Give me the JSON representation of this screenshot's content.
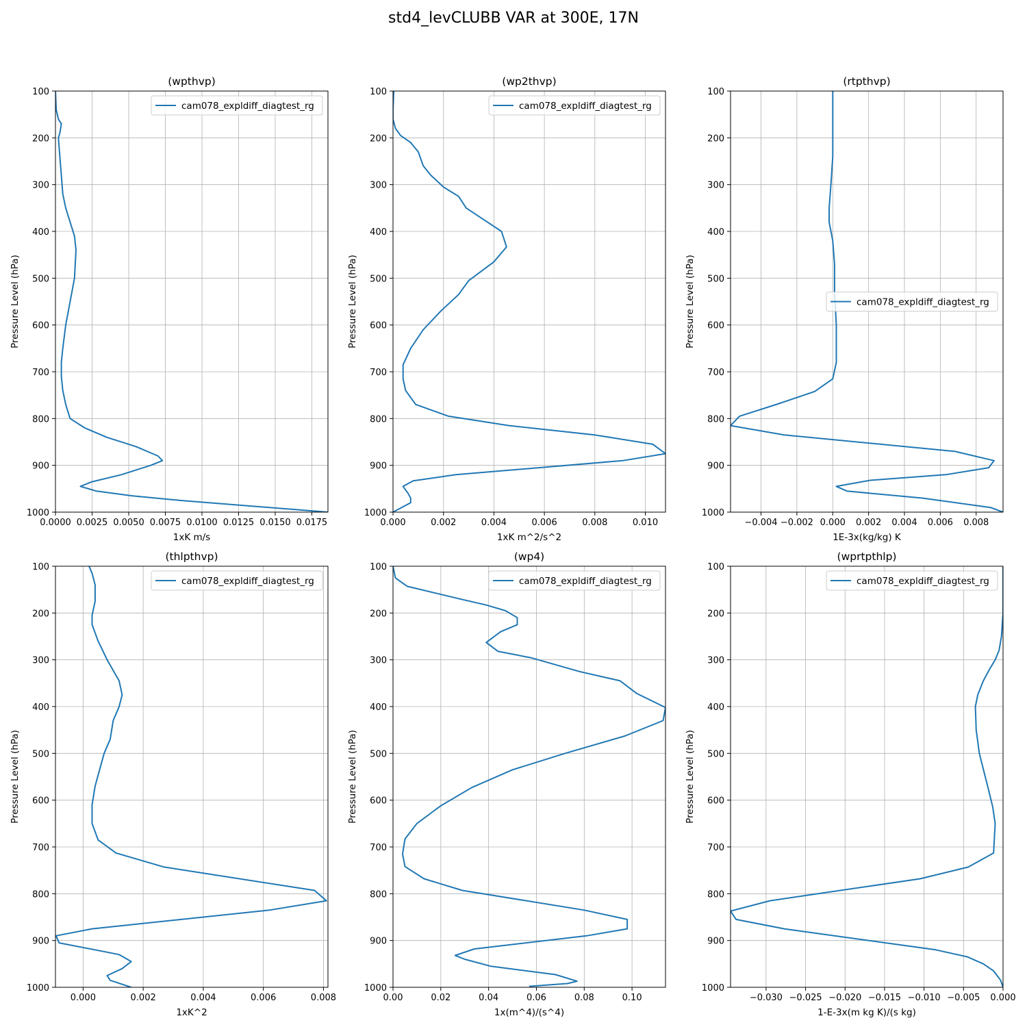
{
  "suptitle": "std4_levCLUBB VAR at 300E, 17N",
  "legend_label": "cam078_expldiff_diagtest_rg",
  "series_color": "#1f77b4",
  "chart_data": [
    {
      "type": "line",
      "title": "(wpthvp)",
      "xlabel": "1xK m/s",
      "ylabel": "Pressure Level (hPa)",
      "xlim": [
        0,
        0.0186
      ],
      "ylim": [
        1000,
        100
      ],
      "xticks": [
        0,
        0.0025,
        0.005,
        0.0075,
        0.01,
        0.0125,
        0.015,
        0.0175
      ],
      "xtick_labels": [
        "0.0000",
        "0.0025",
        "0.0050",
        "0.0075",
        "0.0100",
        "0.0125",
        "0.0150",
        "0.0175"
      ],
      "yticks": [
        100,
        200,
        300,
        400,
        500,
        600,
        700,
        800,
        900,
        1000
      ],
      "grid": true,
      "legend_loc": "upper right",
      "series": [
        {
          "name": "cam078_expldiff_diagtest_rg",
          "x": [
            0.0,
            5e-05,
            0.0002,
            0.0004,
            0.0003,
            0.0002,
            0.0003,
            0.0004,
            0.0005,
            0.0007,
            0.001,
            0.0013,
            0.0014,
            0.0013,
            0.001,
            0.0007,
            0.0005,
            0.0004,
            0.0004,
            0.0005,
            0.0007,
            0.001,
            0.002,
            0.0035,
            0.0055,
            0.007,
            0.0073,
            0.0065,
            0.0045,
            0.0025,
            0.0017,
            0.0028,
            0.0052,
            0.0085,
            0.0186
          ],
          "y": [
            100,
            140,
            160,
            170,
            190,
            200,
            240,
            280,
            320,
            350,
            380,
            410,
            440,
            500,
            550,
            600,
            650,
            680,
            710,
            740,
            770,
            800,
            820,
            840,
            860,
            880,
            890,
            900,
            920,
            935,
            945,
            955,
            965,
            975,
            1000
          ]
        }
      ]
    },
    {
      "type": "line",
      "title": "(wp2thvp)",
      "xlabel": "1xK m^2/s^2",
      "ylabel": "Pressure Level (hPa)",
      "xlim": [
        0,
        0.0108
      ],
      "ylim": [
        1000,
        100
      ],
      "xticks": [
        0,
        0.002,
        0.004,
        0.006,
        0.008,
        0.01
      ],
      "xtick_labels": [
        "0.000",
        "0.002",
        "0.004",
        "0.006",
        "0.008",
        "0.010"
      ],
      "yticks": [
        100,
        200,
        300,
        400,
        500,
        600,
        700,
        800,
        900,
        1000
      ],
      "grid": true,
      "legend_loc": "upper right",
      "series": [
        {
          "name": "cam078_expldiff_diagtest_rg",
          "x": [
            3e-05,
            0.0,
            0.0,
            0.0001,
            0.0003,
            0.0007,
            0.001,
            0.0012,
            0.0015,
            0.002,
            0.0026,
            0.0029,
            0.0036,
            0.0043,
            0.0045,
            0.004,
            0.003,
            0.0026,
            0.0019,
            0.0012,
            0.0007,
            0.0004,
            0.0004,
            0.0005,
            0.0009,
            0.0022,
            0.0046,
            0.008,
            0.0103,
            0.0108,
            0.0091,
            0.0025,
            0.0008,
            0.0004,
            0.0006,
            0.0007,
            0.0007,
            0.0
          ],
          "y": [
            100,
            140,
            160,
            180,
            195,
            210,
            230,
            260,
            280,
            305,
            325,
            350,
            375,
            400,
            433,
            465,
            505,
            535,
            570,
            610,
            650,
            685,
            715,
            740,
            770,
            795,
            815,
            835,
            855,
            875,
            890,
            920,
            933,
            945,
            960,
            970,
            980,
            1000
          ]
        }
      ]
    },
    {
      "type": "line",
      "title": "(rtpthvp)",
      "xlabel": "1E-3x(kg/kg) K",
      "ylabel": "Pressure Level (hPa)",
      "xlim": [
        -0.0057,
        0.0095
      ],
      "ylim": [
        1000,
        100
      ],
      "xticks": [
        -0.004,
        -0.002,
        0,
        0.002,
        0.004,
        0.006,
        0.008
      ],
      "xtick_labels": [
        "−0.004",
        "−0.002",
        "0.000",
        "0.002",
        "0.004",
        "0.006",
        "0.008"
      ],
      "yticks": [
        100,
        200,
        300,
        400,
        500,
        600,
        700,
        800,
        900,
        1000
      ],
      "grid": true,
      "legend_loc": "center right",
      "series": [
        {
          "name": "cam078_expldiff_diagtest_rg",
          "x": [
            0.0,
            0.0,
            0.0,
            -0.0001,
            -0.0002,
            -0.0002,
            0.0,
            0.0001,
            0.0001,
            0.0002,
            0.0002,
            0.0002,
            0.0,
            -0.001,
            -0.003,
            -0.0052,
            -0.0057,
            -0.0027,
            0.0068,
            0.009,
            0.0087,
            0.0063,
            0.0021,
            0.0002,
            0.0008,
            0.005,
            0.0088,
            0.0095
          ],
          "y": [
            100,
            200,
            240,
            300,
            350,
            380,
            420,
            470,
            530,
            600,
            650,
            680,
            715,
            742,
            768,
            795,
            815,
            835,
            870,
            890,
            905,
            920,
            932,
            945,
            955,
            970,
            990,
            1000
          ]
        }
      ]
    },
    {
      "type": "line",
      "title": "(thlpthvp)",
      "xlabel": "1xK^2",
      "ylabel": "Pressure Level (hPa)",
      "xlim": [
        -0.00092,
        0.00815
      ],
      "ylim": [
        1000,
        100
      ],
      "xticks": [
        0,
        0.002,
        0.004,
        0.006,
        0.008
      ],
      "xtick_labels": [
        "0.000",
        "0.002",
        "0.004",
        "0.006",
        "0.008"
      ],
      "yticks": [
        100,
        200,
        300,
        400,
        500,
        600,
        700,
        800,
        900,
        1000
      ],
      "grid": true,
      "legend_loc": "upper right",
      "series": [
        {
          "name": "cam078_expldiff_diagtest_rg",
          "x": [
            0.0002,
            0.0003,
            0.0004,
            0.0004,
            0.0003,
            0.0003,
            0.0005,
            0.0008,
            0.0012,
            0.0013,
            0.0012,
            0.001,
            0.0009,
            0.0007,
            0.0004,
            0.0003,
            0.0003,
            0.0005,
            0.0011,
            0.0027,
            0.0077,
            0.0081,
            0.0062,
            0.0003,
            -0.0009,
            -0.0008,
            0.0012,
            0.0016,
            0.0013,
            0.0008,
            0.0009,
            0.0016
          ],
          "y": [
            100,
            115,
            140,
            175,
            205,
            225,
            260,
            300,
            345,
            375,
            400,
            430,
            470,
            500,
            570,
            610,
            650,
            685,
            713,
            743,
            793,
            815,
            835,
            875,
            890,
            905,
            930,
            945,
            960,
            975,
            985,
            1000
          ]
        }
      ]
    },
    {
      "type": "line",
      "title": "(wp4)",
      "xlabel": "1x(m^4)/(s^4)",
      "ylabel": "Pressure Level (hPa)",
      "xlim": [
        0,
        0.114
      ],
      "ylim": [
        1000,
        100
      ],
      "xticks": [
        0,
        0.02,
        0.04,
        0.06,
        0.08,
        0.1
      ],
      "xtick_labels": [
        "0.00",
        "0.02",
        "0.04",
        "0.06",
        "0.08",
        "0.10"
      ],
      "yticks": [
        100,
        200,
        300,
        400,
        500,
        600,
        700,
        800,
        900,
        1000
      ],
      "grid": true,
      "legend_loc": "upper right",
      "series": [
        {
          "name": "cam078_expldiff_diagtest_rg",
          "x": [
            0.0,
            0.001,
            0.006,
            0.028,
            0.039,
            0.047,
            0.052,
            0.052,
            0.045,
            0.039,
            0.044,
            0.058,
            0.078,
            0.095,
            0.102,
            0.114,
            0.113,
            0.097,
            0.072,
            0.05,
            0.033,
            0.02,
            0.01,
            0.005,
            0.004,
            0.005,
            0.013,
            0.029,
            0.08,
            0.098,
            0.098,
            0.081,
            0.034,
            0.026,
            0.03,
            0.041,
            0.068,
            0.077,
            0.073,
            0.057
          ],
          "y": [
            100,
            125,
            143,
            170,
            183,
            195,
            210,
            225,
            240,
            263,
            282,
            296,
            325,
            345,
            372,
            402,
            430,
            463,
            500,
            535,
            573,
            612,
            650,
            683,
            715,
            742,
            768,
            793,
            835,
            855,
            875,
            890,
            918,
            932,
            940,
            955,
            973,
            987,
            992,
            998
          ]
        }
      ]
    },
    {
      "type": "line",
      "title": "(wprtpthlp)",
      "xlabel": "1-E-3x(m kg K)/(s kg)",
      "ylabel": "Pressure Level (hPa)",
      "xlim": [
        -0.0345,
        0
      ],
      "ylim": [
        1000,
        100
      ],
      "xticks": [
        -0.03,
        -0.025,
        -0.02,
        -0.015,
        -0.01,
        -0.005,
        0
      ],
      "xtick_labels": [
        "−0.030",
        "−0.025",
        "−0.020",
        "−0.015",
        "−0.010",
        "−0.005",
        "0.000"
      ],
      "yticks": [
        100,
        200,
        300,
        400,
        500,
        600,
        700,
        800,
        900,
        1000
      ],
      "grid": true,
      "legend_loc": "upper right",
      "series": [
        {
          "name": "cam078_expldiff_diagtest_rg",
          "x": [
            0.0,
            0.0,
            -0.0002,
            -0.0005,
            -0.001,
            -0.0017,
            -0.0025,
            -0.0032,
            -0.0035,
            -0.0034,
            -0.003,
            -0.0024,
            -0.0018,
            -0.0013,
            -0.001,
            -0.0012,
            -0.0044,
            -0.0105,
            -0.0295,
            -0.0345,
            -0.0338,
            -0.0277,
            -0.0085,
            -0.0045,
            -0.0025,
            -0.0012,
            -0.0003,
            0.0
          ],
          "y": [
            100,
            200,
            250,
            280,
            300,
            320,
            345,
            375,
            400,
            450,
            500,
            540,
            580,
            615,
            650,
            713,
            743,
            768,
            815,
            837,
            855,
            875,
            920,
            935,
            950,
            965,
            985,
            1000
          ]
        }
      ]
    }
  ]
}
